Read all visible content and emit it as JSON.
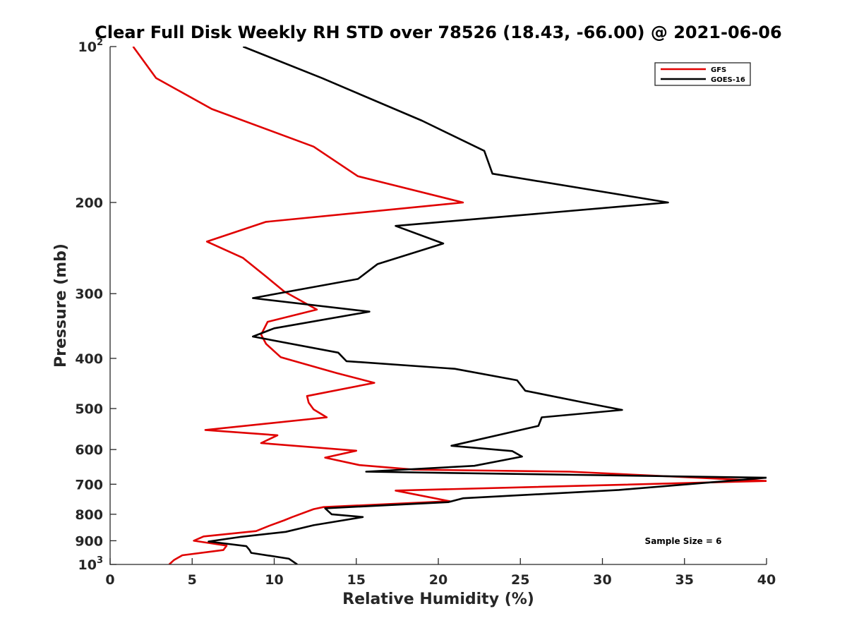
{
  "chart_data": {
    "type": "line",
    "title": "Clear Full Disk Weekly RH STD over 78526 (18.43, -66.00) @ 2021-06-06",
    "xlabel": "Relative Humidity (%)",
    "ylabel": "Pressure (mb)",
    "xlim": [
      0,
      40
    ],
    "ylim": [
      100,
      1000
    ],
    "y_scale": "log",
    "y_reversed": true,
    "x_ticks": [
      0,
      5,
      10,
      15,
      20,
      25,
      30,
      35,
      40
    ],
    "y_ticks": [
      {
        "value": 100,
        "base": "10",
        "exp": "2"
      },
      {
        "value": 200,
        "label": "200"
      },
      {
        "value": 300,
        "label": "300"
      },
      {
        "value": 400,
        "label": "400"
      },
      {
        "value": 500,
        "label": "500"
      },
      {
        "value": 600,
        "label": "600"
      },
      {
        "value": 700,
        "label": "700"
      },
      {
        "value": 800,
        "label": "800"
      },
      {
        "value": 900,
        "label": "900"
      },
      {
        "value": 1000,
        "base": "10",
        "exp": "3"
      }
    ],
    "grid": false,
    "legend_position": "top-right",
    "series": [
      {
        "name": "GFS",
        "color": "#e00000",
        "points": [
          [
            1.4,
            100
          ],
          [
            2.8,
            115
          ],
          [
            6.2,
            132
          ],
          [
            12.4,
            156
          ],
          [
            15.1,
            178
          ],
          [
            21.5,
            200
          ],
          [
            9.5,
            218
          ],
          [
            5.9,
            238
          ],
          [
            8.1,
            256
          ],
          [
            9.5,
            278
          ],
          [
            10.6,
            297
          ],
          [
            12.6,
            322
          ],
          [
            9.6,
            340
          ],
          [
            9.2,
            360
          ],
          [
            9.5,
            375
          ],
          [
            10.4,
            398
          ],
          [
            13.8,
            427
          ],
          [
            16.1,
            446
          ],
          [
            12.0,
            473
          ],
          [
            12.1,
            487
          ],
          [
            12.4,
            502
          ],
          [
            13.2,
            520
          ],
          [
            5.8,
            550
          ],
          [
            10.2,
            563
          ],
          [
            9.2,
            583
          ],
          [
            15.0,
            603
          ],
          [
            13.1,
            622
          ],
          [
            15.2,
            643
          ],
          [
            18.5,
            656
          ],
          [
            28.0,
            662
          ],
          [
            40.0,
            690
          ],
          [
            17.4,
            720
          ],
          [
            20.7,
            755
          ],
          [
            13.0,
            775
          ],
          [
            12.4,
            782
          ],
          [
            11.1,
            810
          ],
          [
            10.6,
            822
          ],
          [
            9.7,
            842
          ],
          [
            8.9,
            862
          ],
          [
            5.7,
            883
          ],
          [
            5.1,
            900
          ],
          [
            7.1,
            920
          ],
          [
            6.9,
            938
          ],
          [
            4.4,
            960
          ],
          [
            3.9,
            980
          ],
          [
            3.6,
            1000
          ]
        ]
      },
      {
        "name": "GOES-16",
        "color": "#000000",
        "points": [
          [
            8.1,
            100
          ],
          [
            12.9,
            115
          ],
          [
            19.0,
            139
          ],
          [
            22.8,
            159
          ],
          [
            23.3,
            176
          ],
          [
            34.0,
            200
          ],
          [
            17.4,
            222
          ],
          [
            20.3,
            240
          ],
          [
            16.3,
            263
          ],
          [
            15.1,
            281
          ],
          [
            8.7,
            306
          ],
          [
            15.8,
            325
          ],
          [
            10.0,
            350
          ],
          [
            8.7,
            363
          ],
          [
            13.9,
            390
          ],
          [
            14.4,
            405
          ],
          [
            21.0,
            419
          ],
          [
            24.8,
            441
          ],
          [
            25.3,
            462
          ],
          [
            28.9,
            487
          ],
          [
            31.2,
            503
          ],
          [
            26.3,
            520
          ],
          [
            26.1,
            540
          ],
          [
            20.8,
            590
          ],
          [
            24.5,
            604
          ],
          [
            25.1,
            619
          ],
          [
            22.2,
            645
          ],
          [
            15.6,
            662
          ],
          [
            40.0,
            680
          ],
          [
            31.0,
            718
          ],
          [
            21.5,
            745
          ],
          [
            20.6,
            758
          ],
          [
            13.1,
            779
          ],
          [
            13.5,
            800
          ],
          [
            15.4,
            810
          ],
          [
            12.4,
            840
          ],
          [
            10.7,
            865
          ],
          [
            7.9,
            885
          ],
          [
            6.0,
            903
          ],
          [
            8.3,
            922
          ],
          [
            8.5,
            938
          ],
          [
            8.6,
            950
          ],
          [
            10.9,
            975
          ],
          [
            11.4,
            1000
          ]
        ]
      }
    ],
    "annotations": [
      "Sample Size = 6"
    ]
  }
}
